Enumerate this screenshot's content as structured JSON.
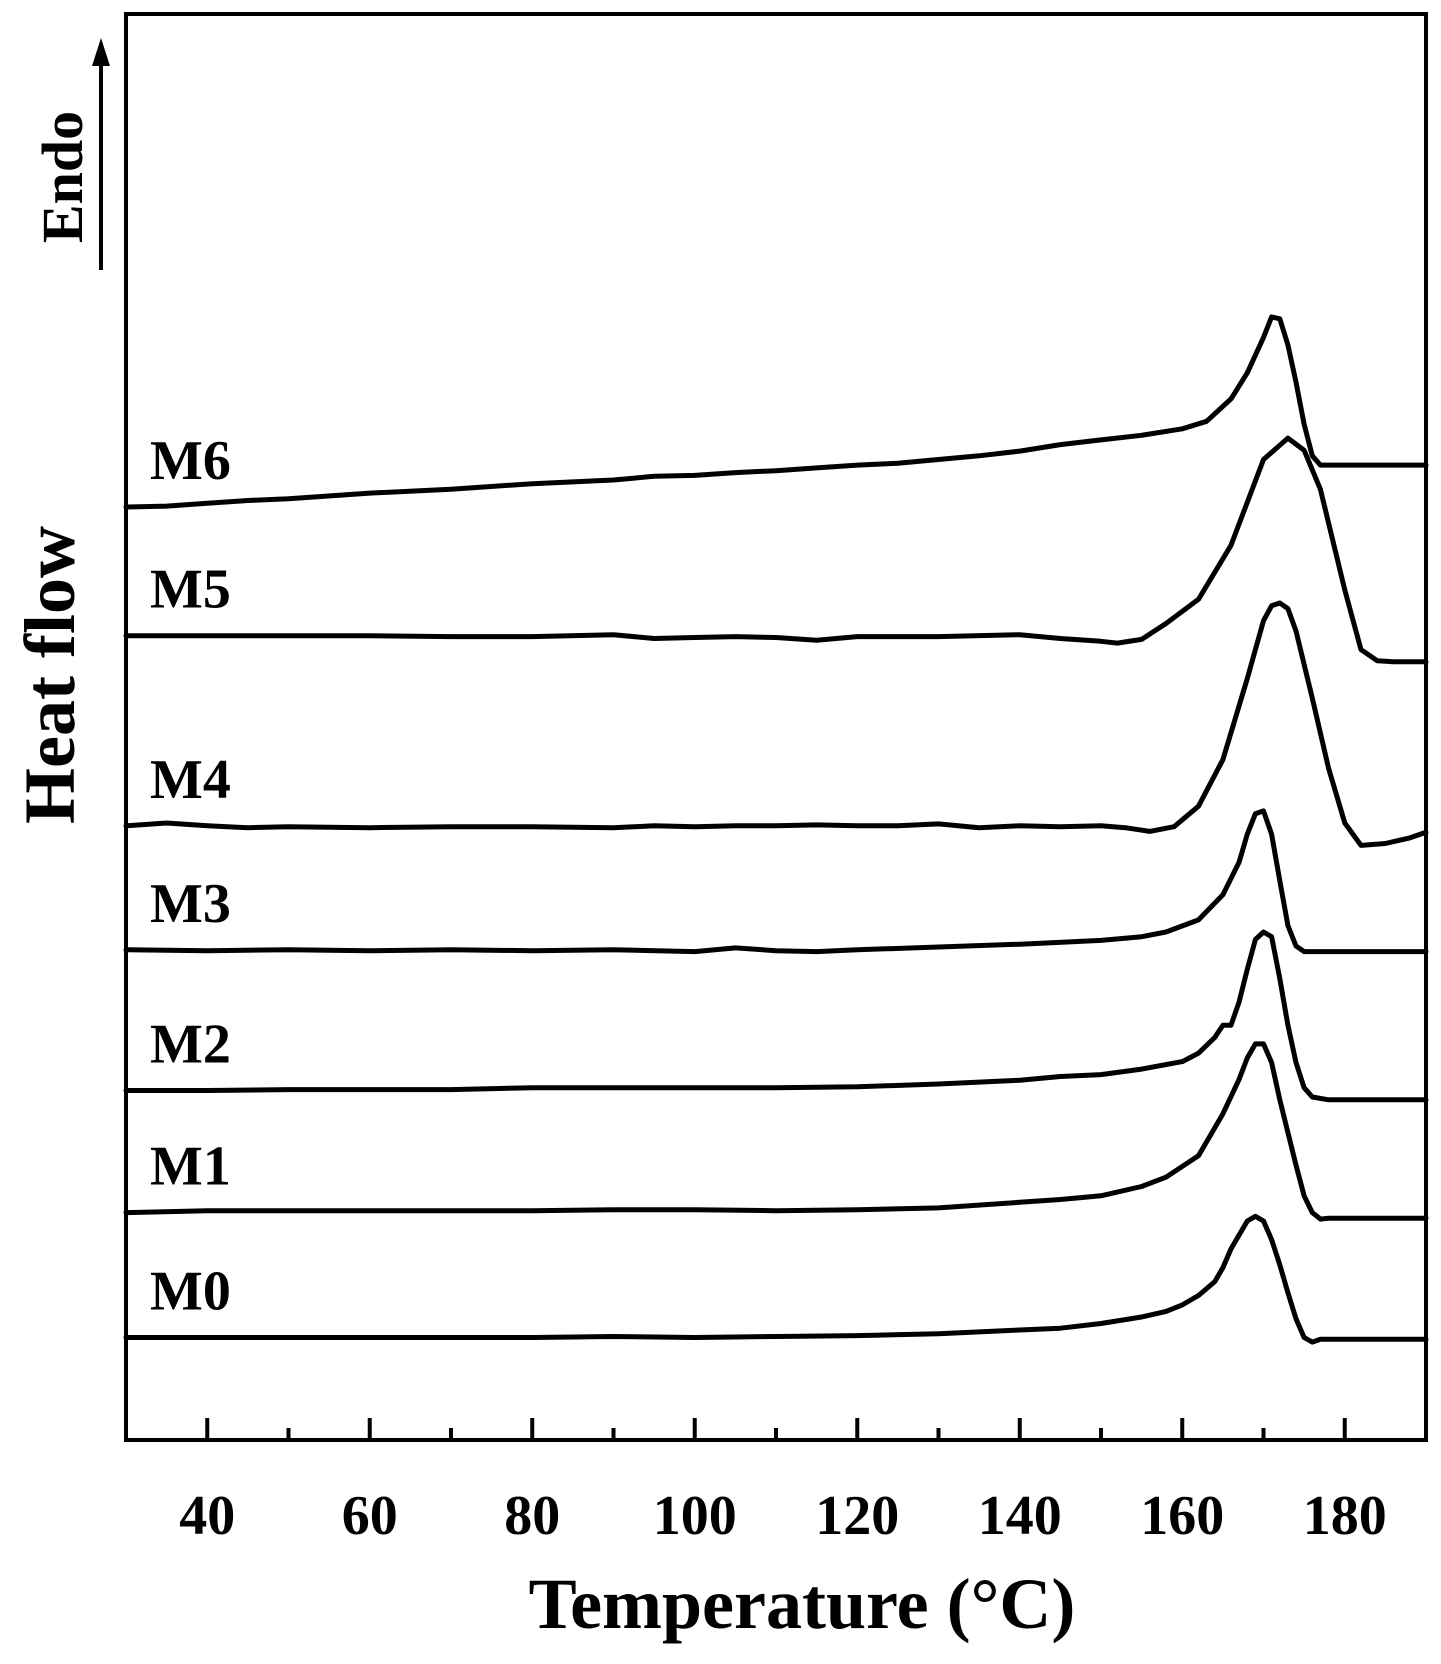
{
  "chart_data": {
    "type": "line",
    "title": "",
    "xlabel": "Temperature (°C)",
    "ylabel": "Heat flow",
    "annotation": "Endo",
    "xlim": [
      30,
      190
    ],
    "xticks": [
      40,
      60,
      80,
      100,
      120,
      140,
      160,
      180
    ],
    "xtick_labels": [
      "40",
      "60",
      "80",
      "100",
      "120",
      "140",
      "160",
      "180"
    ],
    "minor_xtick_step": 10,
    "yticks": "none",
    "grid": false,
    "legend": "none",
    "line_color": "#000000",
    "series": [
      {
        "name": "M6",
        "x": [
          30,
          35,
          40,
          45,
          50,
          60,
          70,
          80,
          90,
          95,
          100,
          105,
          110,
          115,
          120,
          125,
          130,
          135,
          140,
          145,
          150,
          155,
          160,
          163,
          166,
          168,
          170,
          171,
          172,
          173,
          174,
          175,
          176,
          177,
          180,
          185,
          190
        ],
        "y": [
          5.29,
          5.28,
          5.25,
          5.22,
          5.2,
          5.14,
          5.1,
          5.04,
          5.0,
          4.96,
          4.95,
          4.92,
          4.9,
          4.87,
          4.84,
          4.82,
          4.78,
          4.74,
          4.69,
          4.62,
          4.57,
          4.52,
          4.45,
          4.37,
          4.13,
          3.85,
          3.47,
          3.25,
          3.27,
          3.55,
          3.95,
          4.4,
          4.74,
          4.84,
          4.84,
          4.84,
          4.84
        ]
      },
      {
        "name": "M5",
        "x": [
          30,
          40,
          50,
          60,
          70,
          80,
          90,
          95,
          100,
          105,
          110,
          115,
          120,
          125,
          130,
          140,
          145,
          150,
          152,
          155,
          158,
          162,
          166,
          170,
          173,
          175,
          177,
          180,
          182,
          184,
          186,
          190
        ],
        "y": [
          6.67,
          6.67,
          6.67,
          6.67,
          6.68,
          6.68,
          6.66,
          6.7,
          6.69,
          6.68,
          6.69,
          6.72,
          6.68,
          6.68,
          6.68,
          6.66,
          6.7,
          6.73,
          6.75,
          6.71,
          6.54,
          6.28,
          5.7,
          4.78,
          4.55,
          4.68,
          5.1,
          6.18,
          6.82,
          6.94,
          6.95,
          6.95
        ]
      },
      {
        "name": "M4",
        "x": [
          30,
          35,
          40,
          45,
          50,
          60,
          70,
          80,
          90,
          95,
          100,
          105,
          110,
          115,
          120,
          125,
          130,
          135,
          140,
          145,
          150,
          153,
          156,
          159,
          162,
          165,
          168,
          170,
          171,
          172,
          173,
          174,
          176,
          178,
          180,
          182,
          185,
          188,
          190
        ],
        "y": [
          8.71,
          8.68,
          8.71,
          8.73,
          8.72,
          8.73,
          8.72,
          8.72,
          8.73,
          8.71,
          8.72,
          8.71,
          8.71,
          8.7,
          8.71,
          8.71,
          8.69,
          8.73,
          8.71,
          8.72,
          8.71,
          8.73,
          8.77,
          8.72,
          8.5,
          8.0,
          7.13,
          6.51,
          6.35,
          6.32,
          6.38,
          6.62,
          7.34,
          8.09,
          8.68,
          8.92,
          8.9,
          8.84,
          8.78
        ]
      },
      {
        "name": "M3",
        "x": [
          30,
          40,
          50,
          60,
          70,
          80,
          90,
          100,
          105,
          110,
          115,
          120,
          130,
          140,
          150,
          155,
          158,
          162,
          165,
          167,
          168,
          169,
          170,
          171,
          172,
          173,
          174,
          175,
          177,
          180,
          185,
          190
        ],
        "y": [
          10.04,
          10.05,
          10.04,
          10.05,
          10.04,
          10.05,
          10.04,
          10.06,
          10.02,
          10.05,
          10.06,
          10.04,
          10.01,
          9.98,
          9.94,
          9.9,
          9.85,
          9.72,
          9.45,
          9.1,
          8.8,
          8.58,
          8.55,
          8.8,
          9.3,
          9.78,
          10.0,
          10.06,
          10.06,
          10.06,
          10.06,
          10.06
        ]
      },
      {
        "name": "M2",
        "x": [
          30,
          40,
          50,
          60,
          70,
          80,
          90,
          100,
          105,
          110,
          120,
          130,
          140,
          145,
          150,
          155,
          160,
          162,
          164,
          165,
          166,
          167,
          168,
          169,
          170,
          171,
          172,
          173,
          174,
          175,
          176,
          178,
          180,
          185,
          190
        ],
        "y": [
          11.55,
          11.55,
          11.54,
          11.54,
          11.54,
          11.52,
          11.52,
          11.52,
          11.52,
          11.52,
          11.51,
          11.48,
          11.44,
          11.4,
          11.38,
          11.32,
          11.24,
          11.15,
          10.98,
          10.85,
          10.85,
          10.6,
          10.25,
          9.93,
          9.85,
          9.9,
          10.35,
          10.85,
          11.25,
          11.52,
          11.62,
          11.65,
          11.65,
          11.65,
          11.65
        ]
      },
      {
        "name": "M1",
        "x": [
          30,
          40,
          50,
          60,
          70,
          80,
          90,
          100,
          110,
          120,
          130,
          140,
          145,
          150,
          155,
          158,
          162,
          164,
          165,
          167,
          168,
          169,
          170,
          171,
          172,
          174,
          175,
          176,
          177,
          178,
          180,
          185,
          190
        ],
        "y": [
          12.86,
          12.84,
          12.84,
          12.84,
          12.84,
          12.84,
          12.83,
          12.83,
          12.84,
          12.83,
          12.81,
          12.75,
          12.72,
          12.68,
          12.58,
          12.48,
          12.25,
          11.95,
          11.8,
          11.43,
          11.2,
          11.05,
          11.05,
          11.25,
          11.65,
          12.35,
          12.68,
          12.86,
          12.93,
          12.92,
          12.92,
          12.92,
          12.92
        ]
      },
      {
        "name": "M0",
        "x": [
          30,
          40,
          50,
          60,
          70,
          80,
          90,
          100,
          110,
          120,
          130,
          140,
          145,
          150,
          155,
          158,
          160,
          162,
          164,
          165,
          166,
          167,
          168,
          169,
          170,
          171,
          172,
          173,
          174,
          175,
          176,
          177,
          180,
          185,
          190
        ],
        "y": [
          14.2,
          14.2,
          14.2,
          14.2,
          14.2,
          14.2,
          14.19,
          14.2,
          14.19,
          14.18,
          14.16,
          14.12,
          14.1,
          14.05,
          13.98,
          13.92,
          13.85,
          13.75,
          13.6,
          13.45,
          13.25,
          13.1,
          12.95,
          12.9,
          12.95,
          13.15,
          13.42,
          13.72,
          14.0,
          14.2,
          14.25,
          14.22,
          14.22,
          14.22,
          14.22
        ]
      }
    ]
  }
}
